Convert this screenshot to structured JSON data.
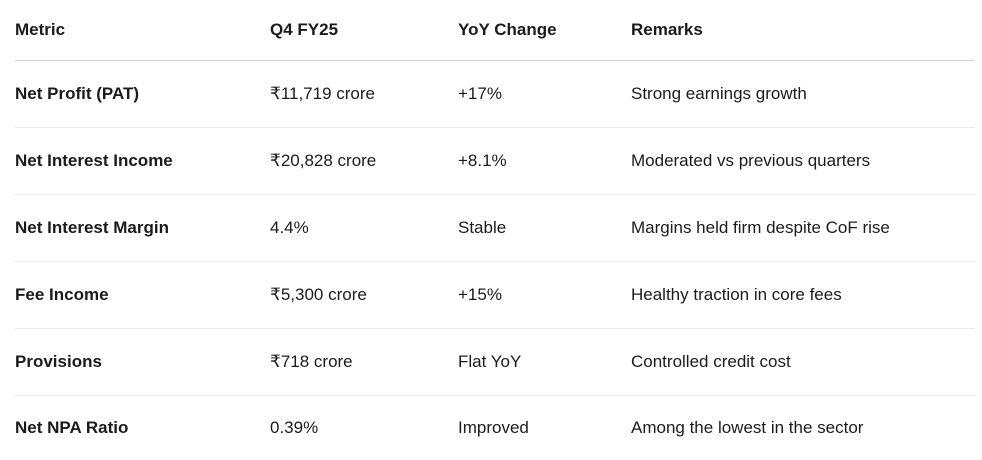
{
  "table": {
    "columns": [
      "Metric",
      "Q4 FY25",
      "YoY Change",
      "Remarks"
    ],
    "rows": [
      {
        "metric": "Net Profit (PAT)",
        "value": "₹11,719 crore",
        "yoy": "+17%",
        "remarks": "Strong earnings growth"
      },
      {
        "metric": "Net Interest Income",
        "value": "₹20,828 crore",
        "yoy": "+8.1%",
        "remarks": "Moderated vs previous quarters"
      },
      {
        "metric": "Net Interest Margin",
        "value": "4.4%",
        "yoy": "Stable",
        "remarks": "Margins held firm despite CoF rise"
      },
      {
        "metric": "Fee Income",
        "value": "₹5,300 crore",
        "yoy": "+15%",
        "remarks": "Healthy traction in core fees"
      },
      {
        "metric": "Provisions",
        "value": "₹718 crore",
        "yoy": "Flat YoY",
        "remarks": "Controlled credit cost"
      },
      {
        "metric": "Net NPA Ratio",
        "value": "0.39%",
        "yoy": "Improved",
        "remarks": "Among the lowest in the sector"
      }
    ]
  },
  "colors": {
    "text": "#1b1b1b",
    "header_divider": "#d2d2d2",
    "row_divider": "#ececec",
    "background": "#ffffff"
  }
}
